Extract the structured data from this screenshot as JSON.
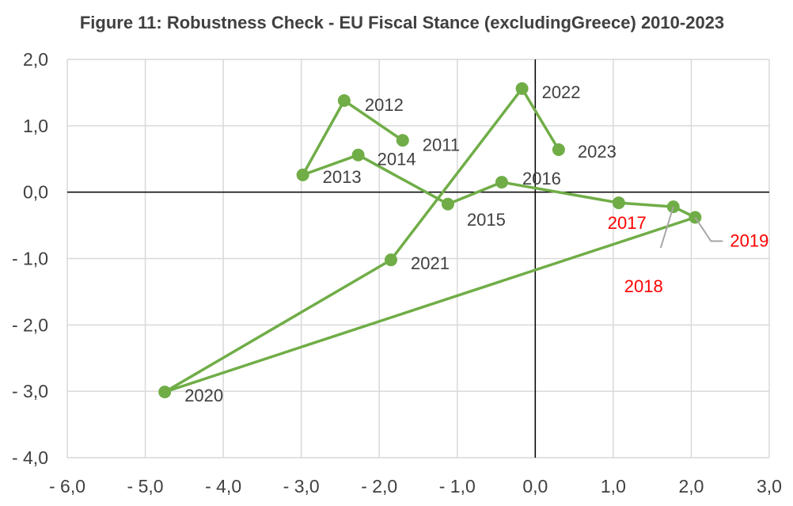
{
  "chart_data": {
    "type": "line",
    "title": "Figure 11: Robustness Check - EU Fiscal Stance (excludingGreece) 2010-2023",
    "xlabel": "",
    "ylabel": "",
    "xlim": [
      -6,
      3
    ],
    "ylim": [
      -4,
      2
    ],
    "x_tick_labels": [
      "- 6,0",
      "- 5,0",
      "- 4,0",
      "- 3,0",
      "- 2,0",
      "- 1,0",
      "0,0",
      "1,0",
      "2,0",
      "3,0"
    ],
    "y_tick_labels": [
      "2,0",
      "1,0",
      "0,0",
      "- 1,0",
      "- 2,0",
      "- 3,0",
      "- 4,0"
    ],
    "grid": true,
    "line_color": "#70ad47",
    "highlight_color": "#ff0000",
    "label_color": "#404040",
    "series": [
      {
        "points": [
          {
            "label": "2011",
            "x": -1.7,
            "y": 0.78
          },
          {
            "label": "2012",
            "x": -2.45,
            "y": 1.38
          },
          {
            "label": "2013",
            "x": -2.98,
            "y": 0.26
          },
          {
            "label": "2014",
            "x": -2.27,
            "y": 0.56
          },
          {
            "label": "2015",
            "x": -1.12,
            "y": -0.18
          },
          {
            "label": "2016",
            "x": -0.43,
            "y": 0.15
          },
          {
            "label": "2017",
            "x": 1.07,
            "y": -0.16
          },
          {
            "label": "2018",
            "x": 1.77,
            "y": -0.22
          },
          {
            "label": "2019",
            "x": 2.05,
            "y": -0.38
          },
          {
            "label": "2020",
            "x": -4.75,
            "y": -3.01
          },
          {
            "label": "2021",
            "x": -1.85,
            "y": -1.02
          },
          {
            "label": "2022",
            "x": -0.17,
            "y": 1.56
          },
          {
            "label": "2023",
            "x": 0.3,
            "y": 0.64
          }
        ]
      }
    ],
    "highlighted_labels": [
      "2017",
      "2018",
      "2019"
    ]
  }
}
